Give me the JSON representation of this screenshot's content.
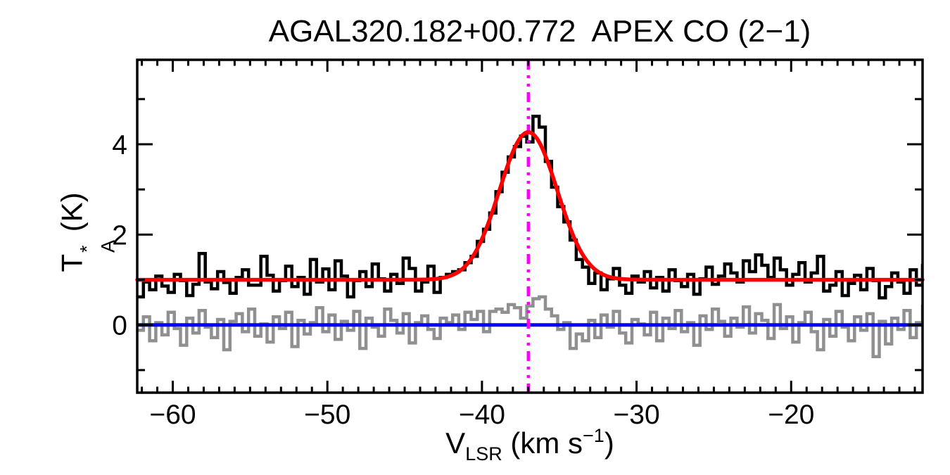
{
  "chart_data": {
    "type": "line",
    "subtype": "spectrum-histogram",
    "title": "AGAL320.182+00.772  APEX CO (2−1)",
    "xlabel": {
      "main": "V",
      "sub": "LSR",
      "mid": " (km s",
      "sup": "−1",
      "close": ")"
    },
    "ylabel": {
      "main": "T",
      "sup": "*",
      "sub": "A",
      "unit": " (K)"
    },
    "x_axis": {
      "range": [
        -62.3,
        -11.5
      ],
      "major_tick_values": [
        -60,
        -50,
        -40,
        -30,
        -20
      ],
      "tick_labels": [
        "−60",
        "−50",
        "−40",
        "−30",
        "−20"
      ],
      "minor_tick_step": 1
    },
    "y_axis": {
      "range": [
        -1.5,
        5.87
      ],
      "major_tick_values": [
        0,
        2,
        4
      ],
      "tick_labels": [
        "0",
        "2",
        "4"
      ],
      "minor_tick_step": 1
    },
    "v_start": -62.1,
    "channel_width_kms": 0.4,
    "series": [
      {
        "name": "co21-spectrum",
        "color": "#000000",
        "style": "histogram",
        "values": [
          0.62,
          0.95,
          0.78,
          1.08,
          0.86,
          0.72,
          1.12,
          0.98,
          0.65,
          0.9,
          1.58,
          0.95,
          0.8,
          1.18,
          0.94,
          0.7,
          1.05,
          1.22,
          0.88,
          0.88,
          1.52,
          1.1,
          0.75,
          0.98,
          1.3,
          0.85,
          1.05,
          0.68,
          1.45,
          0.95,
          1.24,
          0.78,
          1.42,
          1.08,
          0.62,
          0.98,
          1.18,
          0.85,
          1.35,
          1.02,
          0.75,
          1.12,
          0.92,
          1.48,
          1.25,
          0.75,
          0.95,
          1.3,
          0.72,
          1.05,
          1.12,
          1.18,
          1.22,
          1.38,
          1.52,
          1.85,
          2.12,
          2.48,
          2.95,
          3.38,
          3.72,
          3.95,
          4.18,
          4.05,
          4.62,
          4.38,
          3.62,
          3.05,
          2.62,
          2.28,
          1.88,
          1.45,
          1.28,
          0.92,
          1.15,
          0.78,
          1.02,
          1.25,
          0.88,
          0.7,
          1.08,
          0.95,
          1.18,
          0.82,
          1.05,
          0.75,
          1.22,
          0.98,
          0.85,
          1.12,
          0.68,
          1.02,
          1.28,
          0.9,
          1.08,
          1.35,
          1.15,
          0.95,
          1.42,
          1.18,
          1.55,
          1.32,
          1.05,
          1.48,
          1.22,
          0.88,
          1.12,
          1.38,
          0.95,
          1.15,
          1.52,
          0.75,
          0.88,
          1.18,
          0.65,
          0.92,
          1.1,
          0.78,
          1.25,
          0.98,
          0.6,
          0.85,
          1.15,
          0.95,
          0.7,
          1.22,
          0.88,
          1.35
        ]
      },
      {
        "name": "residual-spectrum",
        "color": "#909090",
        "style": "histogram",
        "values": [
          -0.12,
          0.18,
          -0.35,
          0.05,
          -0.22,
          0.28,
          -0.08,
          -0.45,
          0.15,
          -0.18,
          0.32,
          -0.05,
          -0.28,
          0.12,
          -0.55,
          0.08,
          0.25,
          -0.15,
          0.35,
          -0.25,
          0.02,
          -0.38,
          0.18,
          -0.08,
          0.28,
          -0.48,
          0.1,
          -0.2,
          0.05,
          0.38,
          -0.15,
          0.22,
          -0.32,
          0.08,
          -0.12,
          0.3,
          -0.52,
          0.15,
          -0.05,
          -0.25,
          0.35,
          0.1,
          -0.18,
          0.25,
          -0.4,
          0.05,
          0.2,
          -0.1,
          -0.3,
          0.15,
          0.05,
          0.22,
          -0.1,
          0.28,
          0.12,
          0.3,
          -0.15,
          0.3,
          0.35,
          0.28,
          0.45,
          0.38,
          0.15,
          0.42,
          0.58,
          0.62,
          0.35,
          0.2,
          -0.1,
          0.05,
          -0.52,
          -0.2,
          -0.35,
          0.1,
          -0.28,
          0.22,
          -0.05,
          0.3,
          -0.18,
          -0.4,
          0.12,
          0.02,
          -0.22,
          0.28,
          -0.35,
          0.15,
          -0.08,
          0.32,
          -0.15,
          0.05,
          -0.45,
          0.2,
          -0.1,
          0.35,
          0.08,
          -0.25,
          0.15,
          -0.05,
          0.4,
          -0.18,
          0.25,
          0.1,
          -0.3,
          0.45,
          -0.08,
          0.18,
          -0.38,
          0.05,
          0.28,
          -0.15,
          -0.55,
          0.12,
          -0.25,
          0.3,
          -0.05,
          -0.35,
          0.18,
          -0.12,
          0.25,
          -0.7,
          0.08,
          -0.42,
          0.15,
          -0.1,
          0.32,
          -0.28,
          0.05,
          0.45
        ]
      }
    ],
    "gaussian_fit": {
      "name": "gaussian-fit",
      "color": "#ff0000",
      "baseline": 1.0,
      "amplitude": 3.27,
      "center": -37.0,
      "fwhm": 4.4
    },
    "zero_line": {
      "name": "zero-baseline",
      "color": "#0000ff",
      "y": 0
    },
    "vlsr_marker": {
      "name": "vlsr-marker",
      "color": "#ff00ff",
      "v": -37.0,
      "style": "dash-dot-dot"
    },
    "grid": false,
    "legend": false
  }
}
